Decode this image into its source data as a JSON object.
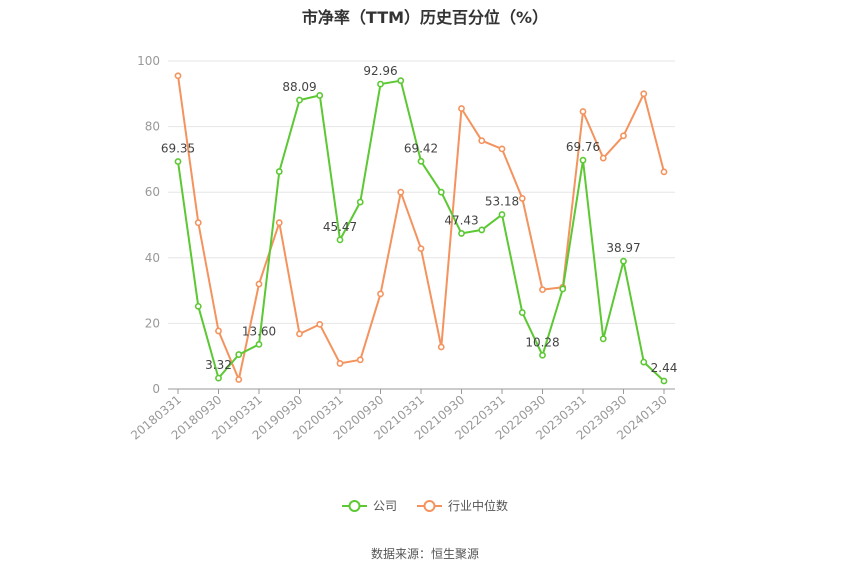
{
  "chart_data": {
    "type": "line",
    "title": "市净率（TTM）历史百分位（%）",
    "xlabel": "",
    "ylabel": "",
    "ylim": [
      0,
      100
    ],
    "yticks": [
      0,
      20,
      40,
      60,
      80,
      100
    ],
    "grid": true,
    "legend_position": "bottom",
    "x": [
      "20180331",
      "20180630",
      "20180930",
      "20181231",
      "20190331",
      "20190630",
      "20190930",
      "20191231",
      "20200331",
      "20200630",
      "20200930",
      "20201231",
      "20210331",
      "20210630",
      "20210930",
      "20211231",
      "20220331",
      "20220630",
      "20220930",
      "20221231",
      "20230331",
      "20230630",
      "20230930",
      "20231231",
      "20240130"
    ],
    "xticks_shown": [
      "20180331",
      "20180930",
      "20190331",
      "20190930",
      "20200331",
      "20200930",
      "20210331",
      "20210930",
      "20220331",
      "20220930",
      "20230331",
      "20230930",
      "20240130"
    ],
    "series": [
      {
        "name": "公司",
        "color": "#5cc833",
        "values": [
          69.35,
          25.2,
          3.32,
          10.5,
          13.6,
          66.3,
          88.09,
          89.5,
          45.47,
          57.0,
          92.96,
          94.0,
          69.42,
          60.0,
          47.43,
          48.5,
          53.18,
          23.3,
          10.28,
          30.5,
          69.76,
          15.3,
          38.97,
          8.2,
          2.44
        ],
        "data_labels": [
          "69.35",
          "",
          "3.32",
          "",
          "13.60",
          "",
          "88.09",
          "",
          "45.47",
          "",
          "92.96",
          "",
          "69.42",
          "",
          "47.43",
          "",
          "53.18",
          "",
          "10.28",
          "",
          "69.76",
          "",
          "38.97",
          "",
          "2.44"
        ]
      },
      {
        "name": "行业中位数",
        "color": "#f4935e",
        "values": [
          95.5,
          50.7,
          17.7,
          2.9,
          32.0,
          50.7,
          16.8,
          19.7,
          7.8,
          8.9,
          29.0,
          60.0,
          42.8,
          12.8,
          85.5,
          75.7,
          73.2,
          58.1,
          30.3,
          31.0,
          84.6,
          70.4,
          77.2,
          90.0,
          66.2
        ],
        "data_labels": []
      }
    ]
  },
  "legend": {
    "items": [
      {
        "label": "公司",
        "color": "#5cc833"
      },
      {
        "label": "行业中位数",
        "color": "#f4935e"
      }
    ]
  },
  "source_text": "数据来源：恒生聚源"
}
